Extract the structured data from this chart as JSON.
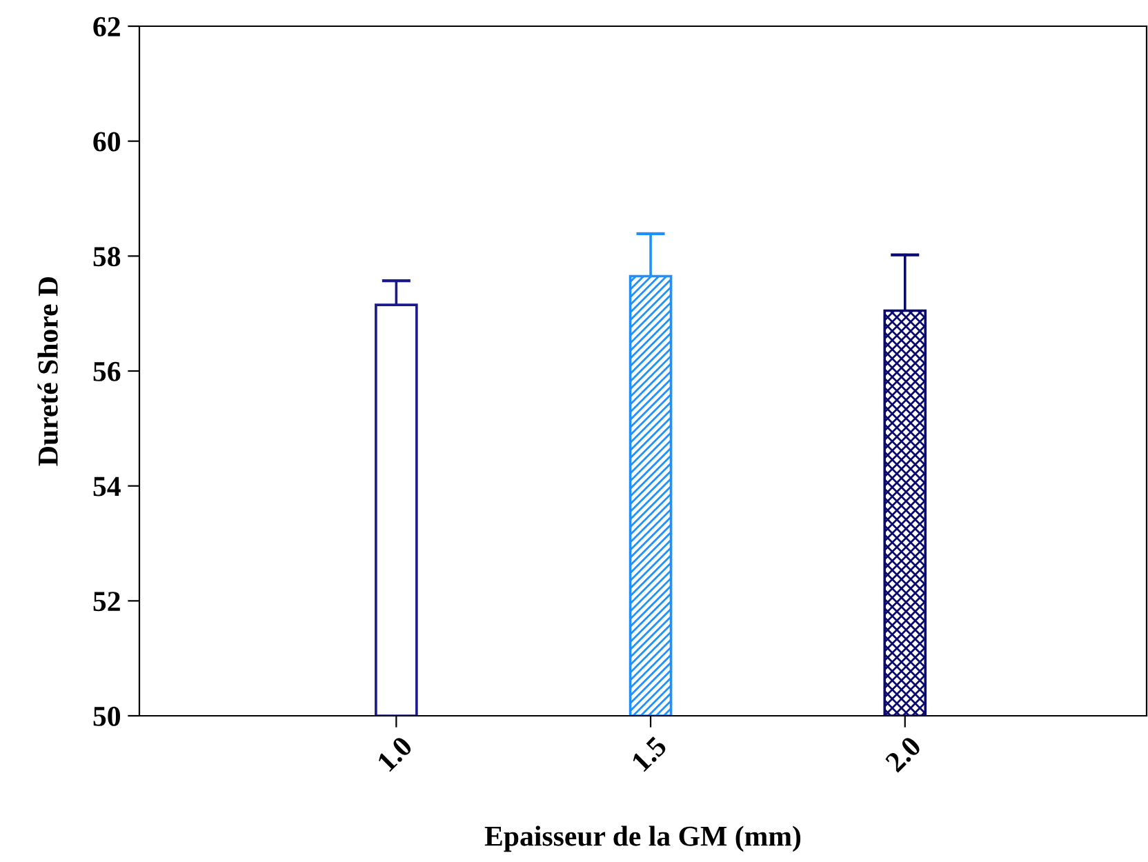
{
  "chart_data": {
    "type": "bar",
    "xlabel": "Epaisseur de la GM (mm)",
    "ylabel": "Dureté Shore D",
    "categories": [
      "1.0",
      "1.5",
      "2.0"
    ],
    "values": [
      57.15,
      57.65,
      57.05
    ],
    "errors": [
      [
        57.15,
        57.57
      ],
      [
        57.65,
        58.39
      ],
      [
        57.05,
        58.02
      ]
    ],
    "colors": [
      "#1a1a8c",
      "#1e90ff",
      "#0a0a6e"
    ],
    "ylim": [
      50,
      62
    ],
    "yticks": [
      50,
      52,
      54,
      56,
      58,
      60,
      62
    ],
    "grid": false,
    "legend": false
  }
}
